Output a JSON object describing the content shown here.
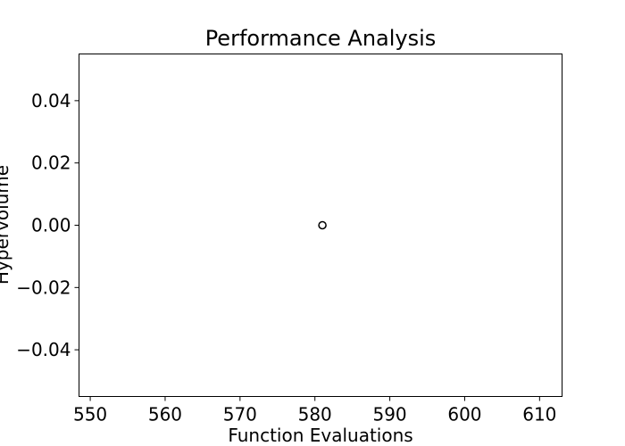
{
  "chart_data": {
    "type": "scatter",
    "title": "Performance Analysis",
    "xlabel": "Function Evaluations",
    "ylabel": "Hypervolume",
    "xlim": [
      548.5,
      613
    ],
    "ylim": [
      -0.055,
      0.055
    ],
    "xticks": [
      550,
      560,
      570,
      580,
      590,
      600,
      610
    ],
    "xtick_labels": [
      "550",
      "560",
      "570",
      "580",
      "590",
      "600",
      "610"
    ],
    "yticks": [
      0.04,
      0.02,
      0.0,
      -0.02,
      -0.04
    ],
    "ytick_labels": [
      "0.04",
      "0.02",
      "0.00",
      "−0.02",
      "−0.04"
    ],
    "points": [
      {
        "x": 581,
        "y": 0.0
      }
    ],
    "grid": false,
    "marker": "open-circle",
    "marker_color": "#000000"
  }
}
